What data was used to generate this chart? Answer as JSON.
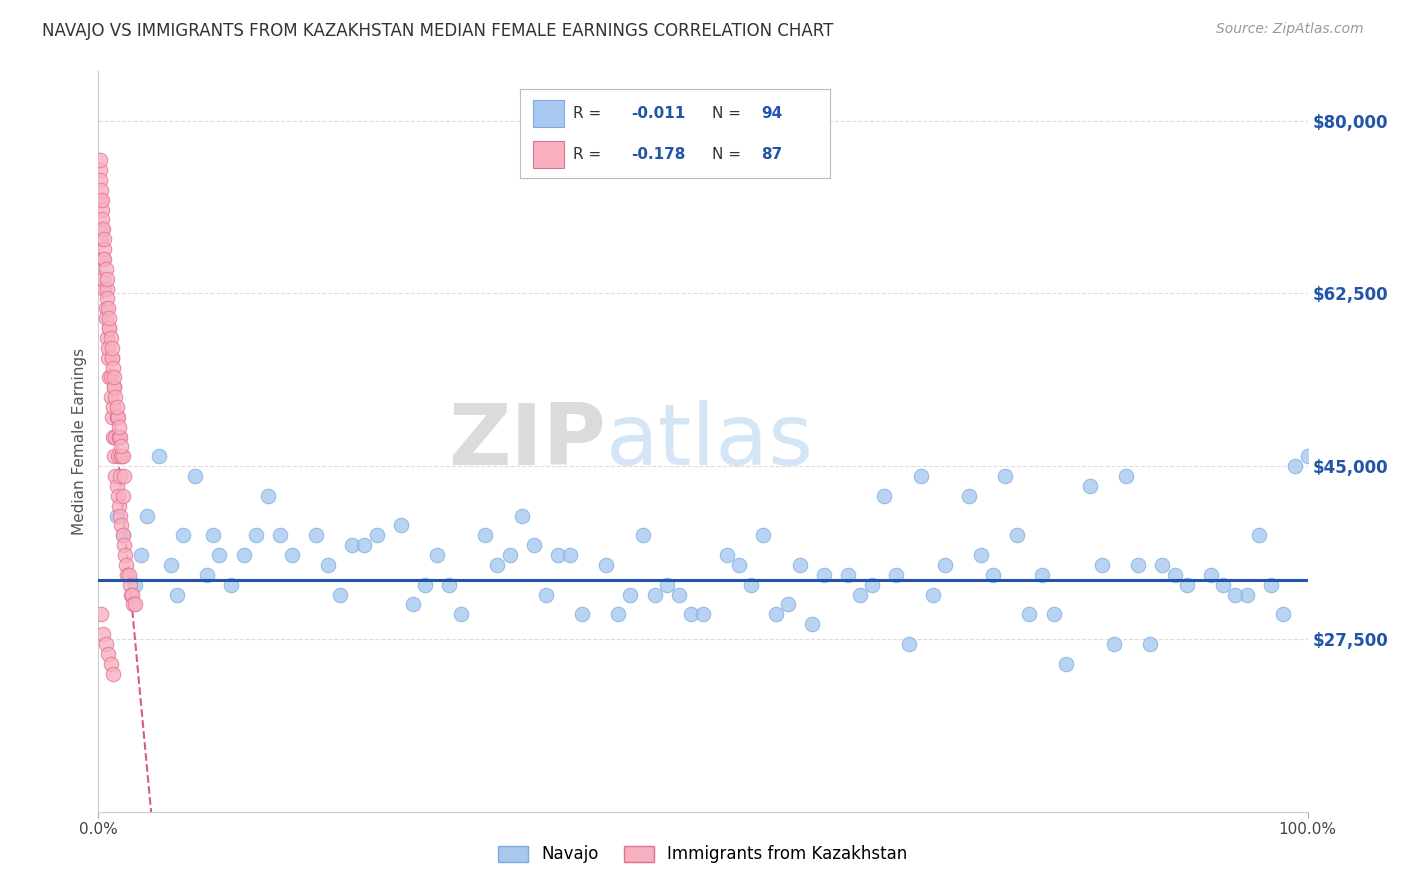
{
  "title": "NAVAJO VS IMMIGRANTS FROM KAZAKHSTAN MEDIAN FEMALE EARNINGS CORRELATION CHART",
  "source": "Source: ZipAtlas.com",
  "ylabel": "Median Female Earnings",
  "xlim": [
    0,
    1.0
  ],
  "ylim": [
    10000,
    85000
  ],
  "yticks": [
    27500,
    45000,
    62500,
    80000
  ],
  "ytick_labels": [
    "$27,500",
    "$45,000",
    "$62,500",
    "$80,000"
  ],
  "xtick_labels": [
    "0.0%",
    "100.0%"
  ],
  "legend_label1": "Navajo",
  "legend_label2": "Immigrants from Kazakhstan",
  "hline_y": 33500,
  "navajo_color": "#a8c8f0",
  "navajo_edge": "#7aacdc",
  "kazakh_color": "#f8b0c0",
  "kazakh_edge": "#e07090",
  "trendline_navajo_color": "#2255aa",
  "trendline_kazakh_color": "#cc3366",
  "watermark_zip": "ZIP",
  "watermark_atlas": "atlas",
  "background_color": "#ffffff",
  "grid_color": "#dddddd",
  "navajo_x": [
    0.02,
    0.05,
    0.08,
    0.11,
    0.14,
    0.18,
    0.21,
    0.25,
    0.28,
    0.32,
    0.35,
    0.38,
    0.42,
    0.45,
    0.48,
    0.52,
    0.55,
    0.58,
    0.62,
    0.65,
    0.68,
    0.72,
    0.75,
    0.78,
    0.82,
    0.85,
    0.88,
    0.92,
    0.95,
    0.98,
    0.03,
    0.06,
    0.09,
    0.12,
    0.15,
    0.19,
    0.22,
    0.26,
    0.29,
    0.33,
    0.36,
    0.39,
    0.43,
    0.46,
    0.49,
    0.53,
    0.56,
    0.59,
    0.63,
    0.66,
    0.69,
    0.73,
    0.76,
    0.79,
    0.83,
    0.86,
    0.89,
    0.93,
    0.96,
    0.99,
    0.04,
    0.07,
    0.1,
    0.13,
    0.16,
    0.2,
    0.23,
    0.27,
    0.3,
    0.34,
    0.37,
    0.4,
    0.44,
    0.47,
    0.5,
    0.54,
    0.57,
    0.6,
    0.64,
    0.67,
    0.7,
    0.74,
    0.77,
    0.8,
    0.84,
    0.87,
    0.9,
    0.94,
    0.97,
    1.0,
    0.015,
    0.035,
    0.065,
    0.095
  ],
  "navajo_y": [
    38000,
    46000,
    44000,
    33000,
    42000,
    38000,
    37000,
    39000,
    36000,
    38000,
    40000,
    36000,
    35000,
    38000,
    32000,
    36000,
    38000,
    35000,
    34000,
    42000,
    44000,
    42000,
    44000,
    34000,
    43000,
    44000,
    35000,
    34000,
    32000,
    30000,
    33000,
    35000,
    34000,
    36000,
    38000,
    35000,
    37000,
    31000,
    33000,
    35000,
    37000,
    36000,
    30000,
    32000,
    30000,
    35000,
    30000,
    29000,
    32000,
    34000,
    32000,
    36000,
    38000,
    30000,
    35000,
    35000,
    34000,
    33000,
    38000,
    45000,
    40000,
    38000,
    36000,
    38000,
    36000,
    32000,
    38000,
    33000,
    30000,
    36000,
    32000,
    30000,
    32000,
    33000,
    30000,
    33000,
    31000,
    34000,
    33000,
    27000,
    35000,
    34000,
    30000,
    25000,
    27000,
    27000,
    33000,
    32000,
    33000,
    46000,
    40000,
    36000,
    32000,
    38000
  ],
  "kazakh_x": [
    0.001,
    0.002,
    0.003,
    0.004,
    0.005,
    0.006,
    0.007,
    0.008,
    0.009,
    0.01,
    0.011,
    0.012,
    0.013,
    0.014,
    0.015,
    0.016,
    0.017,
    0.018,
    0.019,
    0.02,
    0.021,
    0.022,
    0.023,
    0.024,
    0.025,
    0.026,
    0.027,
    0.028,
    0.029,
    0.03,
    0.002,
    0.004,
    0.006,
    0.008,
    0.01,
    0.012,
    0.014,
    0.016,
    0.018,
    0.02,
    0.003,
    0.005,
    0.007,
    0.009,
    0.011,
    0.013,
    0.015,
    0.017,
    0.019,
    0.021,
    0.001,
    0.003,
    0.005,
    0.007,
    0.009,
    0.011,
    0.013,
    0.015,
    0.017,
    0.019,
    0.002,
    0.004,
    0.006,
    0.008,
    0.01,
    0.012,
    0.014,
    0.016,
    0.018,
    0.02,
    0.001,
    0.003,
    0.005,
    0.007,
    0.009,
    0.011,
    0.013,
    0.015,
    0.017,
    0.019,
    0.002,
    0.004,
    0.006,
    0.008,
    0.01,
    0.012
  ],
  "kazakh_y": [
    75000,
    72000,
    69000,
    66000,
    63000,
    61000,
    58000,
    56000,
    54000,
    52000,
    50000,
    48000,
    46000,
    44000,
    43000,
    42000,
    41000,
    40000,
    39000,
    38000,
    37000,
    36000,
    35000,
    34000,
    34000,
    33000,
    32000,
    32000,
    31000,
    31000,
    68000,
    64000,
    60000,
    57000,
    54000,
    51000,
    48000,
    46000,
    44000,
    42000,
    71000,
    67000,
    63000,
    59000,
    56000,
    53000,
    50000,
    48000,
    46000,
    44000,
    74000,
    70000,
    66000,
    62000,
    59000,
    56000,
    53000,
    50000,
    48000,
    46000,
    73000,
    69000,
    65000,
    61000,
    58000,
    55000,
    52000,
    50000,
    48000,
    46000,
    76000,
    72000,
    68000,
    64000,
    60000,
    57000,
    54000,
    51000,
    49000,
    47000,
    30000,
    28000,
    27000,
    26000,
    25000,
    24000
  ]
}
